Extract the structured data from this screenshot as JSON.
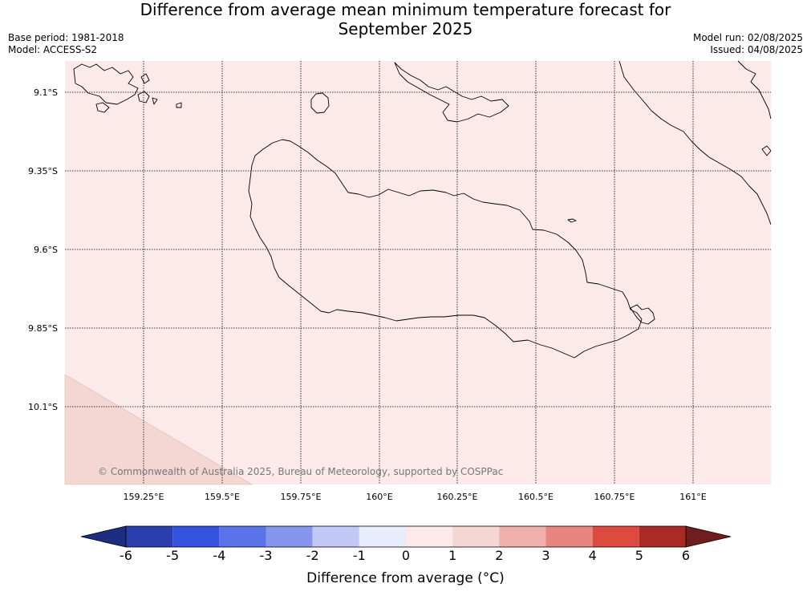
{
  "title_line1": "Difference from average mean minimum temperature forecast for",
  "title_line2": "September 2025",
  "meta_left": {
    "base_period": "Base period: 1981-2018",
    "model": "Model: ACCESS-S2"
  },
  "meta_right": {
    "model_run": "Model run: 02/08/2025",
    "issued": "Issued: 04/08/2025"
  },
  "map": {
    "lat_ticks": [
      "9.1°S",
      "9.35°S",
      "9.6°S",
      "9.85°S",
      "10.1°S"
    ],
    "lon_ticks": [
      "159.25°E",
      "159.5°E",
      "159.75°E",
      "160°E",
      "160.25°E",
      "160.5°E",
      "160.75°E",
      "161°E"
    ],
    "field_colors": {
      "bin_0_1": "#fbeae9",
      "bin_1_2": "#f4d6d3"
    },
    "copyright": "© Commonwealth of Australia 2025, Bureau of Meteorology, supported by COSPPac"
  },
  "colorbar": {
    "ticks": [
      "-6",
      "-5",
      "-4",
      "-3",
      "-2",
      "-1",
      "0",
      "1",
      "2",
      "3",
      "4",
      "5",
      "6"
    ],
    "colors": [
      "#1d2d80",
      "#2a3fad",
      "#3451e0",
      "#5b73e8",
      "#8796ed",
      "#c2c9f6",
      "#e9ecfb",
      "#fbeae9",
      "#f4d6d3",
      "#efb0ac",
      "#e8857e",
      "#dd4a40",
      "#aa2a25",
      "#6e1e1c"
    ],
    "label": "Difference from average (°C)"
  }
}
